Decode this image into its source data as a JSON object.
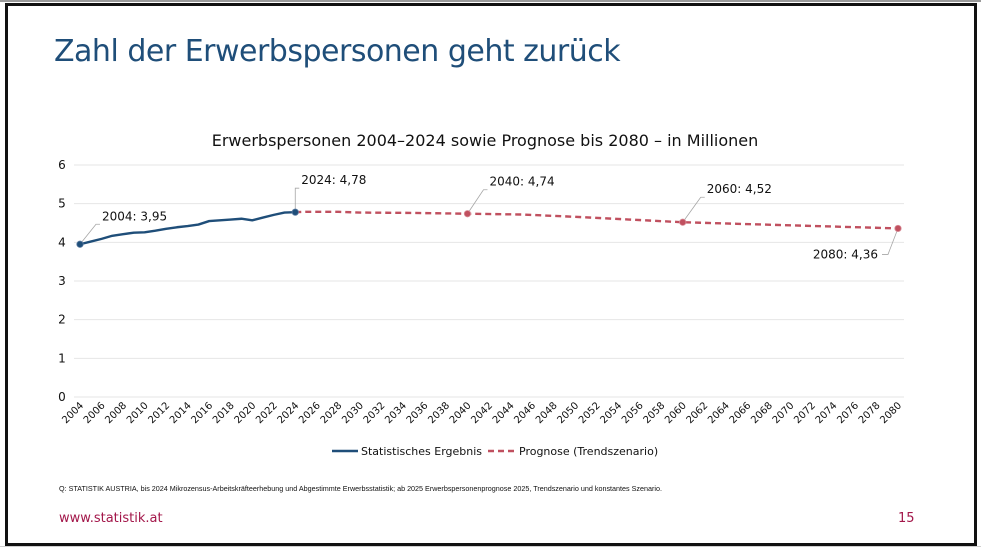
{
  "slide": {
    "title": "Zahl der Erwerbspersonen geht zurück",
    "source": "Q: STATISTIK AUSTRIA, bis 2024 Mikrozensus-Arbeitskräfteerhebung und Abgestimmte Erwerbsstatistik; ab 2025 Erwerbspersonenprognose 2025, Trendszenario und konstantes Szenario.",
    "footer_link": "www.statistik.at",
    "page_number": "15"
  },
  "colors": {
    "title": "#1f4e79",
    "historical": "#1f4e79",
    "forecast": "#c0505f",
    "accent": "#a3174a",
    "grid": "#e6e6e6"
  },
  "chart_data": {
    "type": "line",
    "title": "Erwerbspersonen 2004–2024 sowie Prognose bis 2080 – in Millionen",
    "xlabel": "",
    "ylabel": "",
    "ylim": [
      0,
      6
    ],
    "yticks": [
      "0",
      "1",
      "2",
      "3",
      "4",
      "5",
      "6"
    ],
    "xlim": [
      2004,
      2080
    ],
    "xticks": [
      "2004",
      "2006",
      "2008",
      "2010",
      "2012",
      "2014",
      "2016",
      "2018",
      "2020",
      "2022",
      "2024",
      "2026",
      "2028",
      "2030",
      "2032",
      "2034",
      "2036",
      "2038",
      "2040",
      "2042",
      "2044",
      "2046",
      "2048",
      "2050",
      "2052",
      "2054",
      "2056",
      "2058",
      "2060",
      "2062",
      "2064",
      "2066",
      "2068",
      "2070",
      "2072",
      "2074",
      "2076",
      "2078",
      "2080"
    ],
    "grid": true,
    "legend_position": "bottom",
    "series": [
      {
        "name": "Statistisches Ergebnis",
        "style": "solid",
        "x": [
          2004,
          2005,
          2006,
          2007,
          2008,
          2009,
          2010,
          2011,
          2012,
          2013,
          2014,
          2015,
          2016,
          2017,
          2018,
          2019,
          2020,
          2021,
          2022,
          2023,
          2024
        ],
        "values": [
          3.95,
          4.02,
          4.09,
          4.17,
          4.21,
          4.25,
          4.26,
          4.3,
          4.35,
          4.39,
          4.42,
          4.46,
          4.55,
          4.57,
          4.59,
          4.61,
          4.57,
          4.64,
          4.71,
          4.77,
          4.78
        ]
      },
      {
        "name": "Prognose (Trendszenario)",
        "style": "dashed",
        "x": [
          2024,
          2025,
          2028,
          2030,
          2035,
          2040,
          2045,
          2050,
          2055,
          2060,
          2065,
          2070,
          2075,
          2080
        ],
        "values": [
          4.78,
          4.79,
          4.79,
          4.77,
          4.76,
          4.74,
          4.72,
          4.66,
          4.59,
          4.52,
          4.48,
          4.44,
          4.4,
          4.36
        ]
      }
    ],
    "annotations": [
      {
        "label": "2004: 3,95",
        "x": 2004,
        "y": 3.95,
        "series": 0
      },
      {
        "label": "2024: 4,78",
        "x": 2024,
        "y": 4.78,
        "series": 0
      },
      {
        "label": "2040: 4,74",
        "x": 2040,
        "y": 4.74,
        "series": 1
      },
      {
        "label": "2060: 4,52",
        "x": 2060,
        "y": 4.52,
        "series": 1
      },
      {
        "label": "2080: 4,36",
        "x": 2080,
        "y": 4.36,
        "series": 1
      }
    ]
  }
}
